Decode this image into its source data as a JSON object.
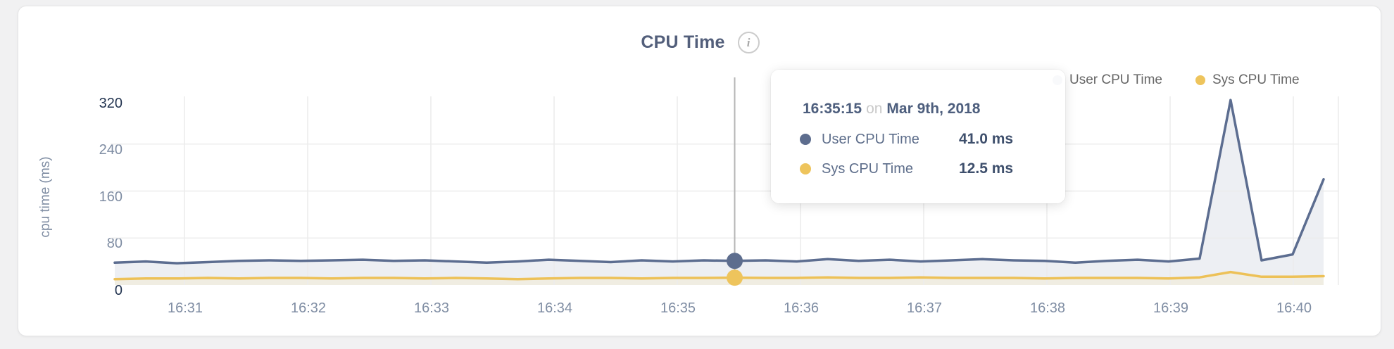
{
  "card": {
    "title": "CPU Time",
    "info_glyph": "i"
  },
  "legend": {
    "items": [
      {
        "label": "User CPU Time",
        "color": "#5d6d8e"
      },
      {
        "label": "Sys CPU Time",
        "color": "#eec45c"
      }
    ]
  },
  "tooltip": {
    "time": "16:35:15",
    "separator": "on",
    "date": "Mar 9th, 2018",
    "rows": [
      {
        "label": "User CPU Time",
        "value": "41.0 ms",
        "color": "#5d6d8e"
      },
      {
        "label": "Sys CPU Time",
        "value": "12.5 ms",
        "color": "#eec45c"
      }
    ]
  },
  "chart_data": {
    "type": "area",
    "title": "CPU Time",
    "ylabel": "cpu time (ms)",
    "ylim": [
      0,
      320
    ],
    "y_ticks": [
      "320",
      "240",
      "160",
      "80",
      "0"
    ],
    "x_ticks": [
      "16:31",
      "16:32",
      "16:33",
      "16:34",
      "16:35",
      "16:36",
      "16:37",
      "16:38",
      "16:39",
      "16:40"
    ],
    "grid": true,
    "legend_position": "top-right",
    "time_range": "16:30:15 - 16:40:10",
    "sample_interval_seconds": 15,
    "series": [
      {
        "name": "User CPU Time",
        "color": "#5c6d90",
        "fill": "#edeff3",
        "unit": "ms",
        "values": [
          38,
          40,
          37,
          39,
          41,
          42,
          41,
          42,
          43,
          41,
          42,
          40,
          38,
          40,
          43,
          41,
          39,
          42,
          40,
          42,
          41,
          42,
          40,
          44,
          41,
          43,
          40,
          42,
          44,
          42,
          41,
          38,
          41,
          43,
          40,
          45,
          315,
          42,
          52,
          180
        ]
      },
      {
        "name": "Sys CPU Time",
        "color": "#edc157",
        "fill": "#f0ede2",
        "unit": "ms",
        "values": [
          10,
          11,
          11,
          12,
          11,
          12,
          12,
          11,
          12,
          12,
          11,
          12,
          11,
          10,
          11,
          12,
          12,
          11,
          12,
          12,
          12.5,
          12,
          12,
          13,
          12,
          12,
          13,
          12,
          12,
          12,
          11,
          12,
          12,
          12,
          11,
          13,
          22,
          14,
          14,
          15
        ]
      }
    ],
    "highlight": {
      "index": 20,
      "time": "16:35:15",
      "date": "Mar 9th, 2018",
      "values": [
        "41.0 ms",
        "12.5 ms"
      ]
    },
    "colors": {
      "gridline": "#ececec",
      "tracking_line": "#b5b5b5",
      "tick_label": "#7f8da3",
      "tick_label_dark": "#243551"
    }
  }
}
